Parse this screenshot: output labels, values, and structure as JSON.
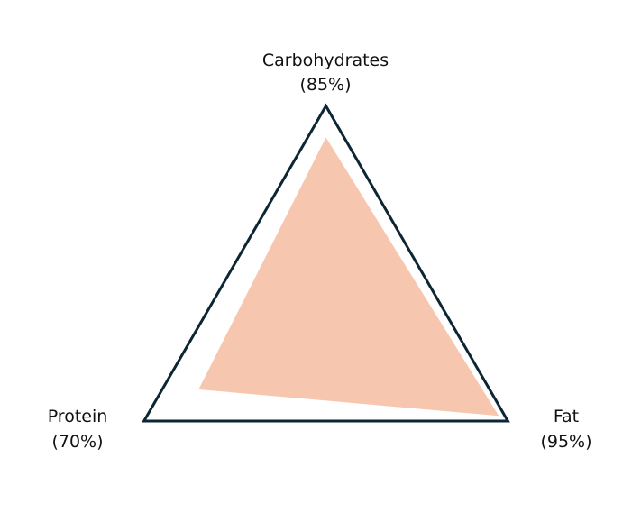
{
  "chart_data": {
    "type": "radar",
    "axes": [
      {
        "name": "Carbohydrates",
        "value_label": "(85%)",
        "value": 85
      },
      {
        "name": "Fat",
        "value_label": "(95%)",
        "value": 95
      },
      {
        "name": "Protein",
        "value_label": "(70%)",
        "value": 70
      }
    ],
    "range": [
      0,
      100
    ],
    "grid": false,
    "colors": {
      "outline": "#0d2633",
      "fill": "#f6c7ae"
    }
  }
}
